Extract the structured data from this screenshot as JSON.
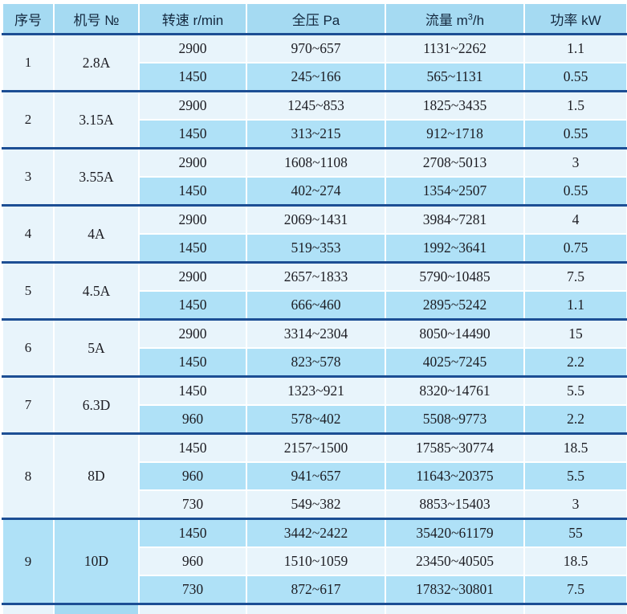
{
  "table": {
    "header": {
      "seq": "序号",
      "model": "机号 №",
      "speed": "转速 r/min",
      "pressure": "全压 Pa",
      "flow_prefix": "流量 m",
      "flow_sup": "3",
      "flow_suffix": "/h",
      "power": "功率 kW"
    },
    "groups": [
      {
        "seq": "1",
        "model": "2.8A",
        "rows": [
          [
            "2900",
            "970~657",
            "1131~2262",
            "1.1"
          ],
          [
            "1450",
            "245~166",
            "565~1131",
            "0.55"
          ]
        ]
      },
      {
        "seq": "2",
        "model": "3.15A",
        "rows": [
          [
            "2900",
            "1245~853",
            "1825~3435",
            "1.5"
          ],
          [
            "1450",
            "313~215",
            "912~1718",
            "0.55"
          ]
        ]
      },
      {
        "seq": "3",
        "model": "3.55A",
        "rows": [
          [
            "2900",
            "1608~1108",
            "2708~5013",
            "3"
          ],
          [
            "1450",
            "402~274",
            "1354~2507",
            "0.55"
          ]
        ]
      },
      {
        "seq": "4",
        "model": "4A",
        "rows": [
          [
            "2900",
            "2069~1431",
            "3984~7281",
            "4"
          ],
          [
            "1450",
            "519~353",
            "1992~3641",
            "0.75"
          ]
        ]
      },
      {
        "seq": "5",
        "model": "4.5A",
        "rows": [
          [
            "2900",
            "2657~1833",
            "5790~10485",
            "7.5"
          ],
          [
            "1450",
            "666~460",
            "2895~5242",
            "1.1"
          ]
        ]
      },
      {
        "seq": "6",
        "model": "5A",
        "rows": [
          [
            "2900",
            "3314~2304",
            "8050~14490",
            "15"
          ],
          [
            "1450",
            "823~578",
            "4025~7245",
            "2.2"
          ]
        ]
      },
      {
        "seq": "7",
        "model": "6.3D",
        "rows": [
          [
            "1450",
            "1323~921",
            "8320~14761",
            "5.5"
          ],
          [
            "960",
            "578~402",
            "5508~9773",
            "2.2"
          ]
        ]
      },
      {
        "seq": "8",
        "model": "8D",
        "rows": [
          [
            "1450",
            "2157~1500",
            "17585~30774",
            "18.5"
          ],
          [
            "960",
            "941~657",
            "11643~20375",
            "5.5"
          ],
          [
            "730",
            "549~382",
            "8853~15403",
            "3"
          ]
        ]
      },
      {
        "seq": "9",
        "model": "10D",
        "rows": [
          [
            "1450",
            "3442~2422",
            "35420~61179",
            "55"
          ],
          [
            "960",
            "1510~1059",
            "23450~40505",
            "18.5"
          ],
          [
            "730",
            "872~617",
            "17832~30801",
            "7.5"
          ]
        ]
      }
    ]
  },
  "colors": {
    "header_bg": "#A5DAF2",
    "model_col_bg": "#A5DAF2",
    "seq_col_bg": "#E8F4FB",
    "row_light_bg": "#E8F4FB",
    "row_medium_bg": "#AFE1F7",
    "group_divider": "#1C4E94",
    "cell_gap": "#FFFFFF",
    "header_text": "#14283E",
    "body_text": "#1C1C22"
  }
}
